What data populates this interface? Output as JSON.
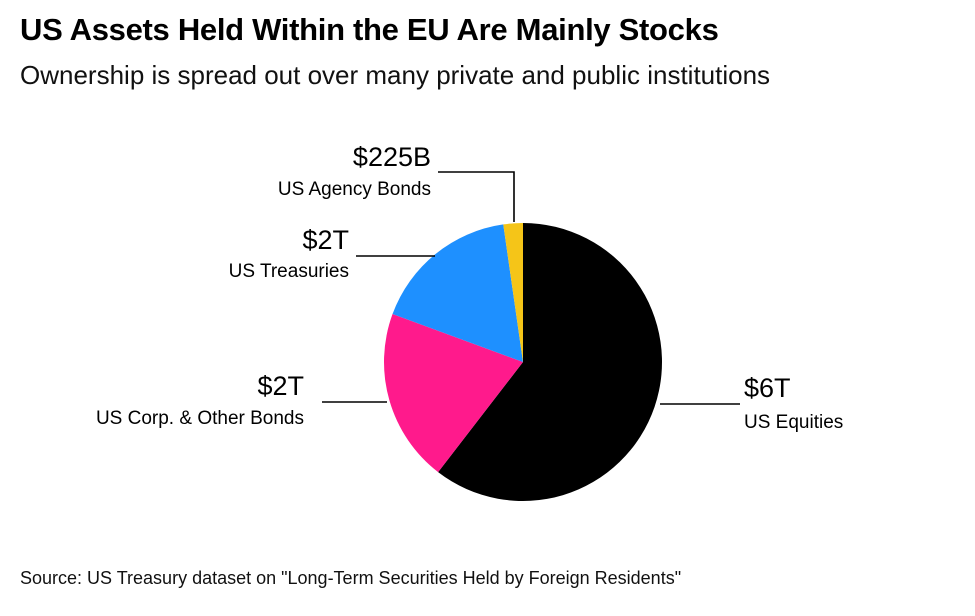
{
  "title": "US Assets Held Within the EU Are Mainly Stocks",
  "subtitle": "Ownership is spread out over many private and public institutions",
  "source": "Source: US Treasury dataset on \"Long-Term Securities Held by Foreign Residents\"",
  "chart_data": {
    "type": "pie",
    "slices": [
      {
        "label": "US Equities",
        "value_label": "$6T",
        "value": 6.0,
        "color": "#000000"
      },
      {
        "label": "US Corp. & Other Bonds",
        "value_label": "$2T",
        "value": 2.0,
        "color": "#ff1a8c"
      },
      {
        "label": "US Treasuries",
        "value_label": "$2T",
        "value": 1.7,
        "color": "#1e90ff"
      },
      {
        "label": "US Agency Bonds",
        "value_label": "$225B",
        "value": 0.225,
        "color": "#f5c518"
      }
    ]
  }
}
